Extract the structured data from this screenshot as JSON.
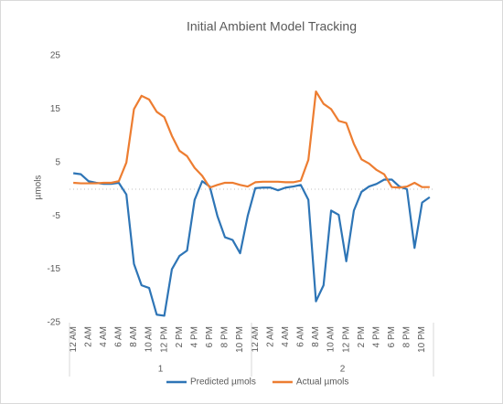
{
  "chart_data": {
    "type": "line",
    "title": "Initial Ambient Model Tracking",
    "y_label": "µmols",
    "categories": [
      "12 AM",
      null,
      "2 AM",
      null,
      "4 AM",
      null,
      "6 AM",
      null,
      "8 AM",
      null,
      "10 AM",
      null,
      "12 PM",
      null,
      "2 PM",
      null,
      "4 PM",
      null,
      "6 PM",
      null,
      "8 PM",
      null,
      "10 PM",
      null,
      "12 AM",
      null,
      "2 AM",
      null,
      "4 AM",
      null,
      "6 AM",
      null,
      "8 AM",
      null,
      "10 AM",
      null,
      "12 PM",
      null,
      "2 PM",
      null,
      "4 PM",
      null,
      "6 PM",
      null,
      "8 PM",
      null,
      "10 PM",
      null
    ],
    "groups": [
      "1",
      "2"
    ],
    "series": [
      {
        "name": "Predicted µmols",
        "color": "#2e75b6",
        "values": [
          3,
          2.8,
          1.5,
          1.2,
          1,
          1,
          1.2,
          -1,
          -14,
          -18,
          -18.5,
          -23.5,
          -23.7,
          -15,
          -12.5,
          -11.5,
          -2,
          1.5,
          0.5,
          -5,
          -9,
          -9.5,
          -12,
          -5,
          0.2,
          0.3,
          0.3,
          -0.2,
          0.3,
          0.5,
          0.8,
          -2,
          -21,
          -18,
          -4,
          -4.8,
          -13.5,
          -4,
          -0.5,
          0.5,
          1,
          1.8,
          1.8,
          0.5,
          0,
          -11,
          -2.5,
          -1.5
        ]
      },
      {
        "name": "Actual µmols",
        "color": "#ed7d31",
        "values": [
          1.2,
          1.1,
          1.1,
          1.1,
          1.2,
          1.2,
          1.5,
          5,
          15,
          17.5,
          16.8,
          14.5,
          13.5,
          10,
          7.2,
          6.2,
          4,
          2.5,
          0.3,
          0.8,
          1.2,
          1.2,
          0.8,
          0.5,
          1.3,
          1.4,
          1.4,
          1.4,
          1.3,
          1.3,
          1.6,
          5.5,
          18.3,
          16,
          15,
          12.8,
          12.4,
          8.5,
          5.6,
          4.8,
          3.6,
          2.8,
          0.4,
          0.3,
          0.5,
          1.2,
          0.4,
          0.4
        ]
      }
    ],
    "ylim": [
      -25,
      25
    ],
    "yticks": [
      25,
      15,
      5,
      -5,
      -15,
      -25
    ],
    "grid": false
  }
}
